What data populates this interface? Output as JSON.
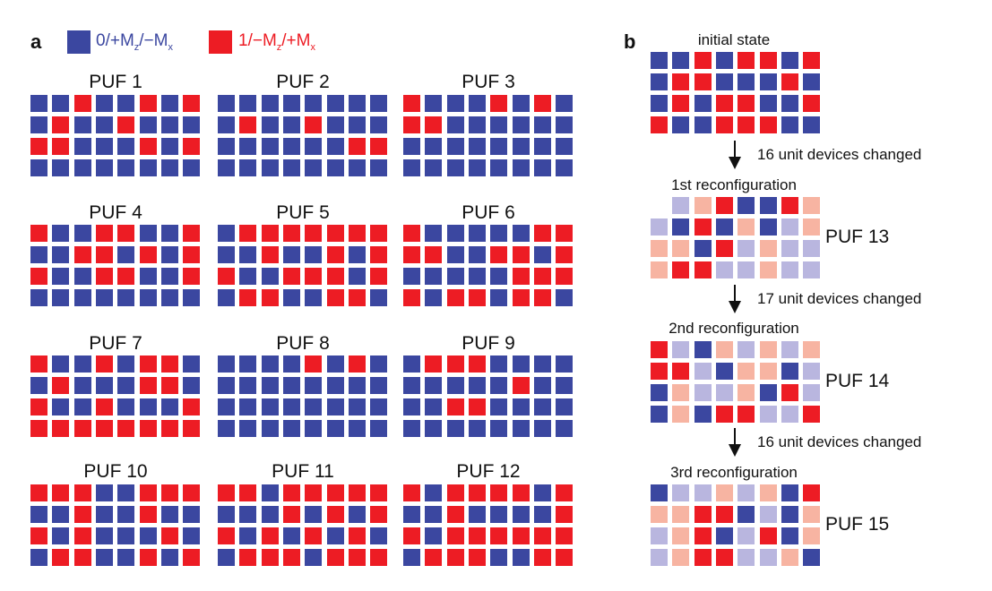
{
  "colors": {
    "blue": "#3b47a0",
    "red": "#ed1c24",
    "light_blue": "#b9b6df",
    "light_red": "#f7b4a2"
  },
  "panel_a": {
    "label": "a",
    "legend": [
      {
        "prefix": "0/+M",
        "sub1": "z",
        "mid": "/−M",
        "sub2": "x",
        "color": "#3b47a0"
      },
      {
        "prefix": "1/−M",
        "sub1": "z",
        "mid": "/+M",
        "sub2": "x",
        "color": "#ed1c24"
      }
    ],
    "pufs": [
      {
        "title": "PUF 1",
        "rows": [
          "BBRBBRBR",
          "BRBBRBBB",
          "RRBBBRBR",
          "BBBBBBBB"
        ]
      },
      {
        "title": "PUF 2",
        "rows": [
          "BBBBBBBB",
          "BRBBRBBB",
          "BBBBBBRR",
          "BBBBBBBB"
        ]
      },
      {
        "title": "PUF 3",
        "rows": [
          "RBBBRBRB",
          "RRBBBBBB",
          "BBBBBBBB",
          "BBBBBBBB"
        ]
      },
      {
        "title": "PUF 4",
        "rows": [
          "RBBRRBBR",
          "BBRRBRBR",
          "RBBRRBBR",
          "BBBBBBBB"
        ]
      },
      {
        "title": "PUF 5",
        "rows": [
          "BRRRRRRR",
          "BBRBBRBR",
          "RBBRRRBR",
          "BRRBBRRB"
        ]
      },
      {
        "title": "PUF 6",
        "rows": [
          "RBBBBBRR",
          "RRBBRRBR",
          "BBBBBRRR",
          "RBRRBRRB"
        ]
      },
      {
        "title": "PUF 7",
        "rows": [
          "RBBRBRRB",
          "BRBBBRRB",
          "RBBRBBBR",
          "RRRRRRRR"
        ]
      },
      {
        "title": "PUF 8",
        "rows": [
          "BBBBRBRB",
          "BBBBBBBB",
          "BBBBBBBB",
          "BBBBBBBB"
        ]
      },
      {
        "title": "PUF 9",
        "rows": [
          "BRRRBBBB",
          "BBBBBRBB",
          "BBRRBBBB",
          "BBBBBBBB"
        ]
      },
      {
        "title": "PUF 10",
        "rows": [
          "RRRBBRRR",
          "BBRBBRBB",
          "RBRBBBRB",
          "BRRBBRBR"
        ]
      },
      {
        "title": "PUF 11",
        "rows": [
          "RRBRRRRR",
          "BBBRBRBR",
          "RBRBRBRB",
          "BRRRBRRR"
        ]
      },
      {
        "title": "PUF 12",
        "rows": [
          "RBRRRRBR",
          "BBRBBBBR",
          "RBRRRRRR",
          "BRRRBBRR"
        ]
      }
    ]
  },
  "panel_b": {
    "label": "b",
    "states": [
      {
        "title": "initial state",
        "side_label": "",
        "rows": [
          "BBRBRRBR",
          "BRRBBBRB",
          "BRBRRBBR",
          "RBBRRRBB"
        ]
      },
      {
        "title": "1st reconfiguration",
        "side_label": "PUF 13",
        "rows": [
          "blsRBBRs",
          "lBRBsBls",
          "ssBRlsll",
          "sRRllsll"
        ]
      },
      {
        "title": "2nd reconfiguration",
        "side_label": "PUF 14",
        "rows": [
          "RlBslsls",
          "RRlBssBl",
          "BsllsBRl",
          "BsBRRllR"
        ]
      },
      {
        "title": "3rd reconfiguration",
        "side_label": "PUF 15",
        "rows": [
          "BllslsBR",
          "ssRRBlBs",
          "lsRBlRBs",
          "lsRRllsB"
        ]
      }
    ],
    "arrows": [
      {
        "text": "16 unit devices changed"
      },
      {
        "text": "17 unit devices changed"
      },
      {
        "text": "16 unit devices changed"
      }
    ]
  }
}
